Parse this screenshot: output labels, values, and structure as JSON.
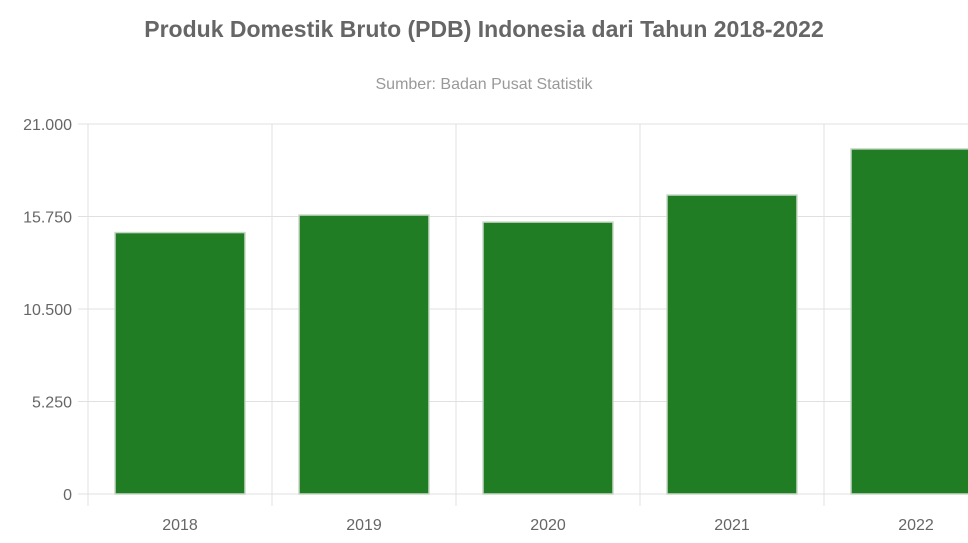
{
  "chart_data": {
    "type": "bar",
    "title": "Produk Domestik Bruto (PDB) Indonesia dari Tahun 2018-2022",
    "subtitle": "Sumber: Badan Pusat Statistik",
    "categories": [
      "2018",
      "2019",
      "2020",
      "2021",
      "2022"
    ],
    "values": [
      14838,
      15833,
      15434,
      16970,
      19588
    ],
    "ylim": [
      0,
      21000
    ],
    "yticks": [
      0,
      5250,
      10500,
      15750,
      21000
    ],
    "ytick_labels": [
      "0",
      "5.250",
      "10.500",
      "15.750",
      "21.000"
    ],
    "xlabel": "",
    "ylabel": "",
    "grid": true,
    "bar_color": "#217d24",
    "bar_border_color": "#c8d8c8"
  }
}
